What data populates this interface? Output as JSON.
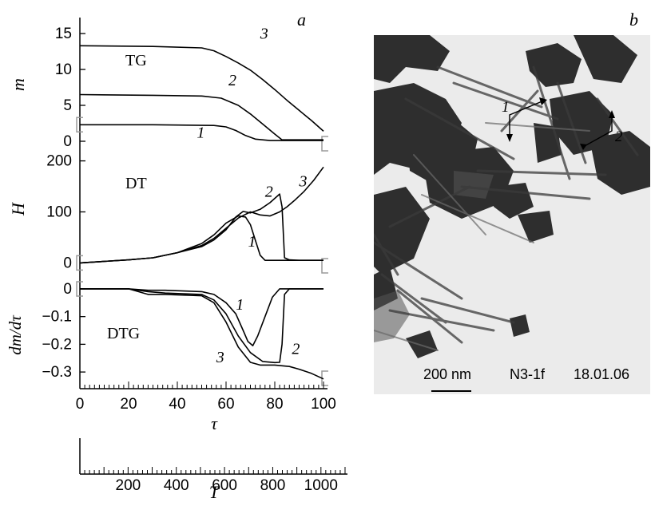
{
  "figure": {
    "panel_a_label": "a",
    "panel_b_label": "b"
  },
  "chart_data": [
    {
      "type": "line",
      "panel": "TG",
      "ylabel": "m",
      "yticks": [
        "15",
        "10",
        "5",
        "0"
      ],
      "ylim": [
        -1,
        15
      ],
      "xlim": [
        0,
        100
      ],
      "series": [
        {
          "name": "1",
          "x": [
            0,
            30,
            55,
            60,
            64,
            68,
            72,
            78,
            85,
            100
          ],
          "values": [
            2.3,
            2.3,
            2.2,
            2.0,
            1.5,
            0.8,
            0.3,
            0.1,
            0.1,
            0.1
          ]
        },
        {
          "name": "2",
          "x": [
            0,
            30,
            50,
            58,
            65,
            70,
            75,
            80,
            83,
            90,
            100
          ],
          "values": [
            6.5,
            6.4,
            6.3,
            6.0,
            5.0,
            3.8,
            2.4,
            1.0,
            0.2,
            0.2,
            0.2
          ]
        },
        {
          "name": "3",
          "x": [
            0,
            30,
            50,
            55,
            60,
            65,
            70,
            75,
            80,
            85,
            90,
            95,
            100
          ],
          "values": [
            13.3,
            13.2,
            13.0,
            12.6,
            11.8,
            10.9,
            9.9,
            8.6,
            7.2,
            5.7,
            4.3,
            2.9,
            1.4
          ]
        }
      ],
      "annotation": "TG"
    },
    {
      "type": "line",
      "panel": "DT",
      "ylabel": "H",
      "yticks": [
        "200",
        "100",
        "0"
      ],
      "ylim": [
        -15,
        215
      ],
      "xlim": [
        0,
        100
      ],
      "series": [
        {
          "name": "1",
          "x": [
            0,
            10,
            20,
            30,
            40,
            50,
            55,
            60,
            65,
            68,
            70,
            72,
            74,
            76,
            78,
            80,
            90,
            100
          ],
          "values": [
            0,
            3,
            6,
            10,
            20,
            38,
            55,
            78,
            92,
            90,
            75,
            45,
            15,
            5,
            5,
            5,
            5,
            5
          ]
        },
        {
          "name": "2",
          "x": [
            0,
            10,
            20,
            30,
            40,
            50,
            55,
            60,
            64,
            67,
            70,
            74,
            78,
            82,
            83,
            84,
            86,
            90,
            100
          ],
          "values": [
            0,
            3,
            6,
            10,
            20,
            32,
            45,
            65,
            90,
            101,
            98,
            105,
            118,
            135,
            110,
            10,
            6,
            5,
            5
          ]
        },
        {
          "name": "3",
          "x": [
            0,
            10,
            20,
            30,
            40,
            50,
            55,
            60,
            65,
            70,
            74,
            78,
            82,
            85,
            88,
            92,
            96,
            100
          ],
          "values": [
            0,
            3,
            6,
            10,
            20,
            34,
            48,
            68,
            88,
            100,
            94,
            92,
            100,
            110,
            122,
            140,
            162,
            188
          ]
        }
      ],
      "annotation": "DT"
    },
    {
      "type": "line",
      "panel": "DTG",
      "ylabel": "dm/dτ",
      "yticks": [
        "0",
        "−0.1",
        "−0.2",
        "−0.3"
      ],
      "ylim": [
        -0.34,
        0.02
      ],
      "xlim": [
        0,
        100
      ],
      "series": [
        {
          "name": "1",
          "x": [
            0,
            20,
            28,
            35,
            50,
            55,
            60,
            64,
            67,
            69,
            71,
            73,
            76,
            79,
            82,
            85,
            100
          ],
          "values": [
            0,
            0,
            -0.005,
            -0.005,
            -0.01,
            -0.02,
            -0.05,
            -0.09,
            -0.15,
            -0.19,
            -0.205,
            -0.17,
            -0.1,
            -0.03,
            0,
            0,
            0
          ]
        },
        {
          "name": "2",
          "x": [
            0,
            20,
            28,
            35,
            50,
            55,
            60,
            65,
            70,
            75,
            80,
            82,
            83,
            84,
            86,
            100
          ],
          "values": [
            0,
            0,
            -0.01,
            -0.015,
            -0.02,
            -0.04,
            -0.09,
            -0.17,
            -0.23,
            -0.262,
            -0.266,
            -0.265,
            -0.2,
            -0.02,
            0,
            0
          ]
        },
        {
          "name": "3",
          "x": [
            0,
            20,
            28,
            35,
            50,
            55,
            60,
            65,
            70,
            74,
            80,
            86,
            90,
            95,
            100
          ],
          "values": [
            0,
            0,
            -0.02,
            -0.02,
            -0.025,
            -0.05,
            -0.12,
            -0.21,
            -0.265,
            -0.275,
            -0.275,
            -0.28,
            -0.29,
            -0.305,
            -0.325
          ]
        }
      ],
      "annotation": "DTG"
    }
  ],
  "axes": {
    "tau_ticks": [
      "0",
      "20",
      "40",
      "60",
      "80",
      "100"
    ],
    "tau_label": "τ",
    "T_ticks": [
      "200",
      "400",
      "600",
      "800",
      "1000"
    ],
    "T_label": "T"
  },
  "micrograph": {
    "scale_bar_text": "200 nm",
    "sample_text": "N3-1f",
    "date_text": "18.01.06",
    "arrow_label_1": "1",
    "arrow_label_2": "2"
  }
}
